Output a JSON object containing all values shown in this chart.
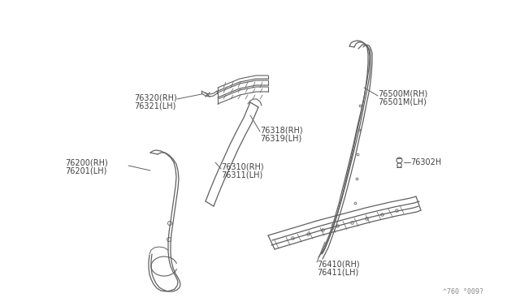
{
  "bg_color": "#ffffff",
  "line_color": "#606060",
  "text_color": "#404040",
  "ref_code": "^760 °009?",
  "parts": {
    "76320_label": [
      "76320(RH)",
      "76321(LH)"
    ],
    "76318_label": [
      "76318(RH)",
      "76319(LH)"
    ],
    "76310_label": [
      "76310(RH)",
      "76311(LH)"
    ],
    "76200_label": [
      "76200(RH)",
      "76201(LH)"
    ],
    "76500_label": [
      "76500M(RH)",
      "76501M(LH)"
    ],
    "76302_label": [
      "76302H"
    ],
    "76410_label": [
      "76410(RH)",
      "76411(LH)"
    ]
  }
}
